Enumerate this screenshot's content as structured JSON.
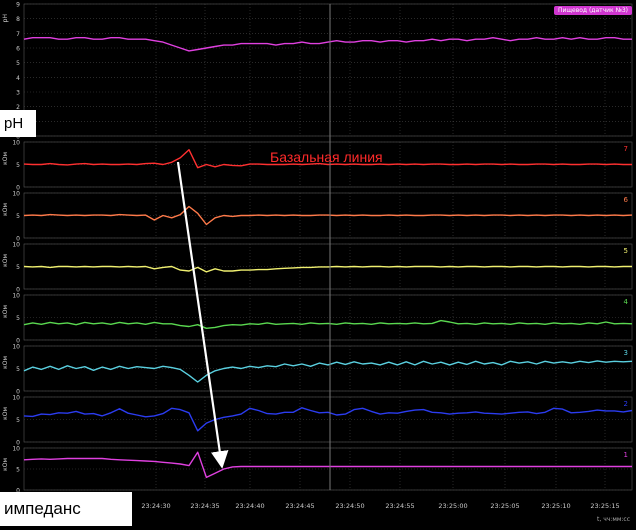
{
  "ph_badge": "Пищевод (датчик №3)",
  "ph_box_label": "pH",
  "impedance_box_label": "импеданс",
  "annotation": "Базальная линия",
  "x_axis_unit": "t, чч:мм:сс",
  "chart_data": [
    {
      "type": "line",
      "title": "pH",
      "ylabel": "pH",
      "ylim": [
        0,
        9
      ],
      "yticks": [
        0,
        1,
        2,
        3,
        4,
        5,
        6,
        7,
        8,
        9
      ],
      "x": [
        0,
        1,
        2,
        3,
        4,
        5,
        6,
        7,
        8,
        9,
        10,
        11,
        12,
        13,
        14,
        15,
        16,
        17,
        18,
        19,
        20,
        21,
        22,
        23,
        24,
        25,
        26,
        27,
        28,
        29,
        30,
        31,
        32,
        33,
        34,
        35,
        36,
        37,
        38,
        39,
        40,
        41,
        42,
        43,
        44,
        45,
        46,
        47,
        48,
        49,
        50,
        51,
        52,
        53,
        54,
        55,
        56,
        57,
        58,
        59,
        60,
        61,
        62,
        63,
        64,
        65,
        66,
        67,
        68,
        69,
        70
      ],
      "series": [
        {
          "color": "#e040e0",
          "values": [
            6.6,
            6.7,
            6.7,
            6.7,
            6.6,
            6.6,
            6.7,
            6.7,
            6.6,
            6.6,
            6.7,
            6.7,
            6.6,
            6.6,
            6.6,
            6.5,
            6.4,
            6.2,
            6.0,
            5.8,
            5.9,
            6.0,
            6.1,
            6.2,
            6.2,
            6.3,
            6.3,
            6.3,
            6.3,
            6.2,
            6.3,
            6.3,
            6.4,
            6.3,
            6.3,
            6.4,
            6.5,
            6.4,
            6.4,
            6.5,
            6.5,
            6.4,
            6.5,
            6.5,
            6.4,
            6.5,
            6.5,
            6.6,
            6.5,
            6.6,
            6.6,
            6.5,
            6.6,
            6.6,
            6.7,
            6.6,
            6.5,
            6.6,
            6.6,
            6.7,
            6.6,
            6.6,
            6.7,
            6.6,
            6.7,
            6.6,
            6.6,
            6.7,
            6.7,
            6.6,
            6.6
          ]
        }
      ]
    },
    {
      "type": "line",
      "ylabel": "кОм",
      "ylim": [
        0,
        10
      ],
      "yticks": [
        0,
        5,
        10
      ],
      "channel": "7",
      "series": [
        {
          "color": "#ff3030",
          "values": [
            5.1,
            5.0,
            5.0,
            5.2,
            5.0,
            4.9,
            5.1,
            5.2,
            5.0,
            5.1,
            5.0,
            5.0,
            5.1,
            5.0,
            5.2,
            5.3,
            5.0,
            5.5,
            6.5,
            8.3,
            4.3,
            5.0,
            4.5,
            5.0,
            4.8,
            4.7,
            5.1,
            5.1,
            5.0,
            5.0,
            5.0,
            5.1,
            5.0,
            5.1,
            5.2,
            5.0,
            5.1,
            5.0,
            5.1,
            5.0,
            5.0,
            5.1,
            5.0,
            5.1,
            5.0,
            5.1,
            5.0,
            5.1,
            5.1,
            5.0,
            5.0,
            5.1,
            5.0,
            5.1,
            5.1,
            5.0,
            5.1,
            5.0,
            5.0,
            5.1,
            5.1,
            5.0,
            5.1,
            5.0,
            5.0,
            5.1,
            5.1,
            5.0,
            5.1,
            5.0,
            5.0
          ]
        }
      ]
    },
    {
      "type": "line",
      "ylabel": "кОм",
      "ylim": [
        0,
        10
      ],
      "yticks": [
        0,
        5,
        10
      ],
      "channel": "6",
      "series": [
        {
          "color": "#ff7a4a",
          "values": [
            5.0,
            5.1,
            5.0,
            5.2,
            5.1,
            5.0,
            5.1,
            5.0,
            5.1,
            5.1,
            5.0,
            5.2,
            5.1,
            5.0,
            5.1,
            4.0,
            5.0,
            4.5,
            5.2,
            7.0,
            5.5,
            3.0,
            4.5,
            5.0,
            4.8,
            5.0,
            5.0,
            5.1,
            5.0,
            5.1,
            5.0,
            5.1,
            5.0,
            5.0,
            5.1,
            5.1,
            5.0,
            5.1,
            5.0,
            5.1,
            5.0,
            5.0,
            5.1,
            5.0,
            5.1,
            5.0,
            5.0,
            5.1,
            5.1,
            5.0,
            5.1,
            5.0,
            5.1,
            5.0,
            5.1,
            5.1,
            5.0,
            5.1,
            5.0,
            5.1,
            5.0,
            5.1,
            5.1,
            5.0,
            5.1,
            5.0,
            5.1,
            5.0,
            5.1,
            5.0,
            5.1
          ]
        }
      ]
    },
    {
      "type": "line",
      "ylabel": "кОм",
      "ylim": [
        0,
        10
      ],
      "yticks": [
        0,
        5,
        10
      ],
      "channel": "5",
      "series": [
        {
          "color": "#f0f070",
          "values": [
            5.0,
            4.9,
            5.0,
            4.8,
            5.0,
            5.0,
            4.9,
            5.0,
            4.9,
            5.0,
            5.0,
            4.9,
            5.0,
            4.9,
            5.0,
            4.5,
            4.8,
            5.0,
            4.2,
            4.0,
            4.8,
            3.8,
            4.5,
            4.0,
            4.0,
            4.2,
            4.2,
            4.3,
            4.3,
            4.5,
            4.6,
            4.7,
            4.8,
            4.8,
            4.9,
            4.9,
            5.0,
            4.9,
            5.0,
            4.9,
            5.0,
            5.0,
            4.9,
            5.0,
            4.9,
            5.0,
            5.0,
            5.0,
            4.9,
            5.0,
            4.9,
            5.0,
            5.0,
            4.9,
            5.0,
            5.0,
            4.9,
            5.0,
            5.0,
            4.9,
            5.0,
            5.0,
            4.9,
            5.0,
            5.0,
            4.9,
            5.0,
            5.0,
            4.9,
            5.0,
            5.0
          ]
        }
      ]
    },
    {
      "type": "line",
      "ylabel": "кОм",
      "ylim": [
        0,
        10
      ],
      "yticks": [
        0,
        5,
        10
      ],
      "channel": "4",
      "series": [
        {
          "color": "#5ad850",
          "values": [
            3.4,
            3.8,
            3.5,
            3.9,
            3.6,
            3.8,
            3.4,
            3.9,
            3.6,
            3.8,
            3.5,
            3.9,
            3.6,
            3.8,
            3.5,
            3.9,
            3.6,
            3.6,
            3.2,
            3.0,
            3.4,
            2.6,
            2.8,
            3.2,
            3.4,
            3.3,
            3.6,
            3.5,
            3.8,
            3.5,
            3.6,
            3.7,
            3.5,
            3.8,
            3.6,
            3.7,
            3.5,
            3.8,
            3.6,
            3.7,
            3.5,
            3.8,
            3.6,
            3.7,
            3.6,
            3.8,
            3.6,
            3.7,
            4.3,
            4.0,
            3.6,
            3.7,
            3.5,
            3.8,
            3.6,
            3.7,
            3.5,
            3.8,
            3.6,
            3.7,
            3.5,
            3.8,
            3.6,
            3.7,
            3.5,
            3.8,
            3.6,
            4.0,
            3.6,
            3.7,
            3.6
          ]
        }
      ]
    },
    {
      "type": "line",
      "ylabel": "кОм",
      "ylim": [
        0,
        10
      ],
      "yticks": [
        0,
        5,
        10
      ],
      "channel": "3",
      "series": [
        {
          "color": "#5ad0e0",
          "values": [
            4.5,
            5.3,
            4.8,
            5.5,
            4.8,
            5.6,
            5.0,
            5.4,
            4.6,
            5.3,
            4.8,
            5.5,
            5.0,
            5.4,
            5.2,
            5.0,
            5.5,
            5.2,
            4.8,
            3.5,
            2.0,
            3.5,
            4.5,
            5.0,
            5.3,
            5.0,
            5.5,
            5.2,
            5.6,
            5.4,
            6.0,
            5.6,
            6.0,
            5.5,
            6.2,
            5.8,
            6.4,
            5.9,
            6.5,
            6.0,
            6.2,
            5.8,
            6.4,
            5.8,
            6.5,
            5.8,
            6.6,
            6.0,
            6.4,
            5.8,
            6.4,
            5.9,
            6.6,
            6.0,
            6.3,
            5.8,
            6.6,
            6.2,
            6.5,
            6.0,
            6.6,
            6.2,
            6.5,
            6.2,
            6.6,
            6.3,
            6.7,
            6.4,
            6.6,
            6.5,
            6.6
          ]
        }
      ]
    },
    {
      "type": "line",
      "ylabel": "кОм",
      "ylim": [
        0,
        10
      ],
      "yticks": [
        0,
        5,
        10
      ],
      "channel": "2",
      "series": [
        {
          "color": "#2b3cf0",
          "values": [
            5.8,
            5.7,
            6.2,
            6.1,
            6.5,
            6.4,
            6.8,
            6.2,
            6.3,
            5.8,
            6.5,
            7.4,
            6.4,
            6.0,
            5.6,
            5.8,
            6.3,
            7.5,
            7.2,
            6.5,
            2.5,
            4.2,
            5.0,
            5.5,
            5.8,
            6.2,
            7.5,
            7.0,
            6.3,
            6.2,
            6.6,
            6.6,
            7.6,
            7.0,
            6.5,
            6.6,
            6.0,
            6.2,
            7.2,
            7.5,
            6.8,
            6.2,
            6.5,
            6.4,
            6.8,
            7.1,
            7.2,
            6.6,
            6.5,
            6.2,
            6.4,
            6.5,
            6.7,
            6.4,
            6.3,
            6.2,
            6.4,
            6.6,
            6.7,
            6.3,
            6.6,
            7.5,
            7.3,
            6.5,
            6.6,
            6.8,
            7.1,
            6.9,
            6.9,
            6.7,
            7.0
          ]
        }
      ]
    },
    {
      "type": "line",
      "ylabel": "кОм",
      "ylim": [
        0,
        10
      ],
      "yticks": [
        0,
        5,
        10
      ],
      "channel": "1",
      "series": [
        {
          "color": "#e040e0",
          "values": [
            7.2,
            7.3,
            7.4,
            7.3,
            7.4,
            7.5,
            7.5,
            7.5,
            7.5,
            7.5,
            7.3,
            7.2,
            7.1,
            7.0,
            6.9,
            6.8,
            6.6,
            6.4,
            6.2,
            5.8,
            9.0,
            3.0,
            4.0,
            5.0,
            5.5,
            5.6,
            5.6,
            5.6,
            5.6,
            5.6,
            5.6,
            5.6,
            5.6,
            5.6,
            5.6,
            5.6,
            5.6,
            5.6,
            5.6,
            5.6,
            5.6,
            5.6,
            5.6,
            5.6,
            5.6,
            5.6,
            5.6,
            5.6,
            5.6,
            5.6,
            5.6,
            5.6,
            5.6,
            5.6,
            5.6,
            5.6,
            5.6,
            5.6,
            5.6,
            5.6,
            5.6,
            5.6,
            5.6,
            5.6,
            5.6,
            5.6,
            5.6,
            5.6,
            5.6,
            5.6,
            5.6
          ]
        }
      ]
    }
  ],
  "x_ticks": [
    "23:24:30",
    "23:24:35",
    "23:24:40",
    "23:24:45",
    "23:24:50",
    "23:24:55",
    "23:25:00",
    "23:25:05",
    "23:25:10",
    "23:25:15"
  ]
}
